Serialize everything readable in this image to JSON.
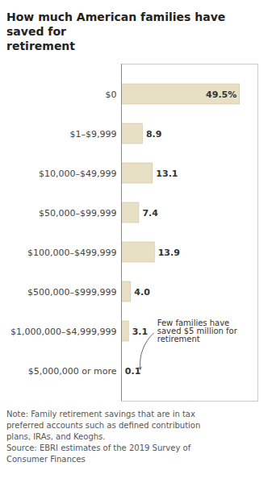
{
  "chart_data": {
    "type": "bar",
    "orientation": "horizontal",
    "title": "How much American families have saved for\nretirement",
    "categories": [
      "$0",
      "$1–$9,999",
      "$10,000–$49,999",
      "$50,000–$99,999",
      "$100,000–$499,999",
      "$500,000–$999,999",
      "$1,000,000–$4,999,999",
      "$5,000,000 or more"
    ],
    "values": [
      49.5,
      8.9,
      13.1,
      7.4,
      13.9,
      4.0,
      3.1,
      0.1
    ],
    "value_labels": [
      "49.5%",
      "8.9",
      "13.1",
      "7.4",
      "13.9",
      "4.0",
      "3.1",
      "0.1"
    ],
    "data_labels": true,
    "color": "#e8e0c4",
    "xlim": [
      0,
      57
    ],
    "xticks": [],
    "tick_labels": "y",
    "grid": false,
    "annotation": "Few families have\nsaved $5 million for\nretirement",
    "note": "Note: Family retirement savings that are in tax\npreferred accounts such as defined contribution\nplans, IRAs, and Keoghs.\nSource: EBRI estimates of the 2019 Survey of\nConsumer Finances"
  }
}
